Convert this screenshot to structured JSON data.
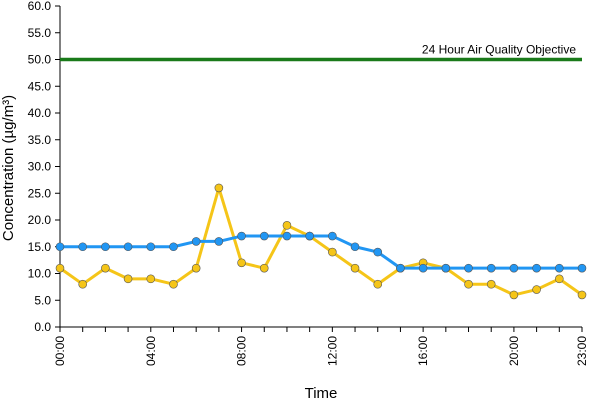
{
  "chart_data": {
    "type": "line",
    "xlabel": "Time",
    "ylabel": "Concentration (µg/m³)",
    "ylim": [
      0,
      60
    ],
    "y_ticks": [
      "0.0",
      "5.0",
      "10.0",
      "15.0",
      "20.0",
      "25.0",
      "30.0",
      "35.0",
      "40.0",
      "45.0",
      "50.0",
      "55.0",
      "60.0"
    ],
    "x": [
      "00:00",
      "01:00",
      "02:00",
      "03:00",
      "04:00",
      "05:00",
      "06:00",
      "07:00",
      "08:00",
      "09:00",
      "10:00",
      "11:00",
      "12:00",
      "13:00",
      "14:00",
      "15:00",
      "16:00",
      "17:00",
      "18:00",
      "19:00",
      "20:00",
      "21:00",
      "22:00",
      "23:00"
    ],
    "x_tick_labels": [
      "00:00",
      "04:00",
      "08:00",
      "12:00",
      "16:00",
      "20:00",
      "23:00"
    ],
    "grid": false,
    "series": [
      {
        "color": "#2196f3",
        "values": [
          15,
          15,
          15,
          15,
          15,
          15,
          16,
          16,
          17,
          17,
          17,
          17,
          17,
          15,
          14,
          11,
          11,
          11,
          11,
          11,
          11,
          11,
          11,
          11
        ]
      },
      {
        "color": "#f5c518",
        "values": [
          11,
          8,
          11,
          9,
          9,
          8,
          11,
          26,
          12,
          11,
          19,
          17,
          14,
          11,
          8,
          11,
          12,
          11,
          8,
          8,
          6,
          7,
          9,
          6
        ]
      }
    ],
    "reference_line": {
      "value": 50,
      "label": "24 Hour Air Quality Objective",
      "color": "#1a7a1a"
    }
  }
}
